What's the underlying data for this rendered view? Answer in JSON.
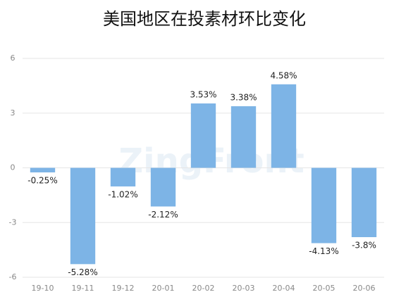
{
  "chart_data": {
    "type": "bar",
    "title": "美国地区在投素材环比变化",
    "watermark": "ZingFront",
    "categories": [
      "19-10",
      "19-11",
      "19-12",
      "20-01",
      "20-02",
      "20-03",
      "20-04",
      "20-05",
      "20-06"
    ],
    "values": [
      -0.25,
      -5.28,
      -1.02,
      -2.12,
      3.53,
      3.38,
      4.58,
      -4.13,
      -3.8
    ],
    "value_labels": [
      "-0.25%",
      "-5.28%",
      "-1.02%",
      "-2.12%",
      "3.53%",
      "3.38%",
      "4.58%",
      "-4.13%",
      "-3.8%"
    ],
    "color": "#7db4e6",
    "ylim": [
      -6,
      6
    ],
    "yticks": [
      -6,
      -3,
      0,
      3,
      6
    ],
    "grid": true
  }
}
